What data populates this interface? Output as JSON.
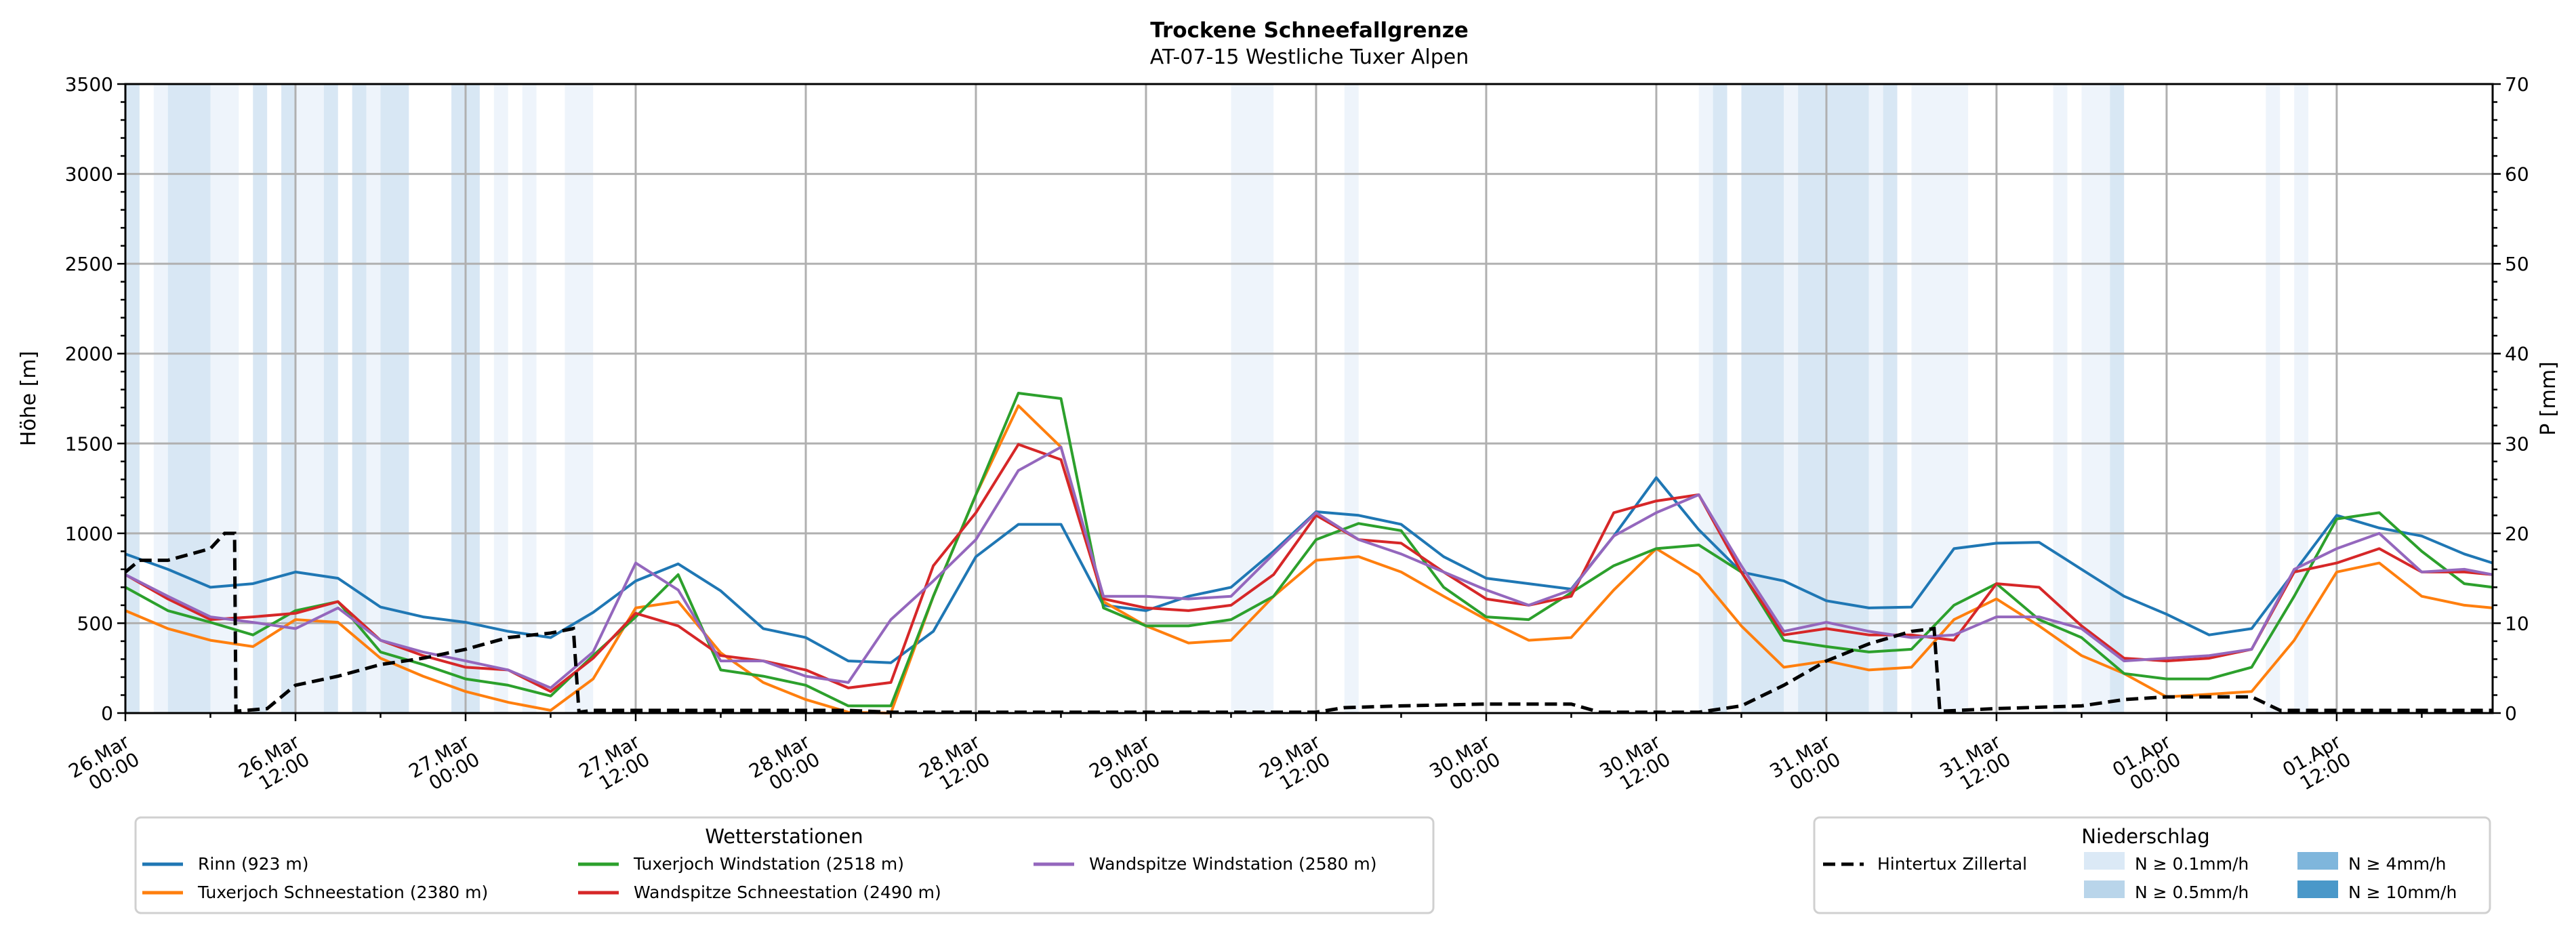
{
  "chart_data": {
    "type": "line",
    "title": "Trockene Schneefallgrenze",
    "subtitle": "AT-07-15 Westliche Tuxer Alpen",
    "ylabel": "Höhe [m]",
    "ylabel_right": "P [mm]",
    "ylim": [
      0,
      3500
    ],
    "ylim_right": [
      0,
      70
    ],
    "yticks": [
      "0",
      "500",
      "1000",
      "1500",
      "2000",
      "2500",
      "3000",
      "3500"
    ],
    "yticks_right": [
      "0",
      "10",
      "20",
      "30",
      "40",
      "50",
      "60",
      "70"
    ],
    "x_unit": "hours since 26.Mar 00:00",
    "xlim": [
      0,
      167
    ],
    "xticks": [
      {
        "h": 0,
        "date": "26.Mar",
        "time": "00:00"
      },
      {
        "h": 12,
        "date": "26.Mar",
        "time": "12:00"
      },
      {
        "h": 24,
        "date": "27.Mar",
        "time": "00:00"
      },
      {
        "h": 36,
        "date": "27.Mar",
        "time": "12:00"
      },
      {
        "h": 48,
        "date": "28.Mar",
        "time": "00:00"
      },
      {
        "h": 60,
        "date": "28.Mar",
        "time": "12:00"
      },
      {
        "h": 72,
        "date": "29.Mar",
        "time": "00:00"
      },
      {
        "h": 84,
        "date": "29.Mar",
        "time": "12:00"
      },
      {
        "h": 96,
        "date": "30.Mar",
        "time": "00:00"
      },
      {
        "h": 108,
        "date": "30.Mar",
        "time": "12:00"
      },
      {
        "h": 120,
        "date": "31.Mar",
        "time": "00:00"
      },
      {
        "h": 132,
        "date": "31.Mar",
        "time": "12:00"
      },
      {
        "h": 144,
        "date": "01.Apr",
        "time": "00:00"
      },
      {
        "h": 156,
        "date": "01.Apr",
        "time": "12:00"
      }
    ],
    "grid": true,
    "x": [
      0,
      3,
      6,
      9,
      12,
      15,
      18,
      21,
      24,
      27,
      30,
      33,
      36,
      39,
      42,
      45,
      48,
      51,
      54,
      57,
      60,
      63,
      66,
      69,
      72,
      75,
      78,
      81,
      84,
      87,
      90,
      93,
      96,
      99,
      102,
      105,
      108,
      111,
      114,
      117,
      120,
      123,
      126,
      129,
      132,
      135,
      138,
      141,
      144,
      147,
      150,
      153,
      156,
      159,
      162,
      165,
      167
    ],
    "series": [
      {
        "name": "Rinn (923 m)",
        "color": "#1f77b4",
        "values": [
          885,
          800,
          700,
          720,
          785,
          750,
          590,
          535,
          505,
          455,
          420,
          560,
          735,
          830,
          680,
          470,
          420,
          290,
          280,
          455,
          870,
          1050,
          1050,
          600,
          570,
          650,
          700,
          900,
          1120,
          1100,
          1050,
          870,
          750,
          720,
          690,
          985,
          1310,
          1020,
          785,
          735,
          625,
          585,
          590,
          915,
          945,
          950,
          800,
          650,
          550,
          435,
          470,
          785,
          1100,
          1030,
          985,
          885,
          835
        ]
      },
      {
        "name": "Tuxerjoch Schneestation (2380 m)",
        "color": "#ff7f0e",
        "values": [
          570,
          470,
          405,
          370,
          520,
          505,
          305,
          205,
          120,
          60,
          15,
          190,
          585,
          620,
          335,
          170,
          75,
          5,
          0,
          650,
          1215,
          1710,
          1480,
          620,
          485,
          390,
          405,
          650,
          850,
          870,
          785,
          650,
          520,
          405,
          420,
          685,
          915,
          770,
          485,
          255,
          290,
          240,
          255,
          520,
          635,
          485,
          320,
          220,
          90,
          105,
          120,
          405,
          785,
          835,
          650,
          600,
          585
        ]
      },
      {
        "name": "Tuxerjoch Windstation (2518 m)",
        "color": "#2ca02c",
        "values": [
          700,
          570,
          505,
          435,
          570,
          620,
          340,
          270,
          190,
          155,
          95,
          320,
          535,
          770,
          240,
          205,
          155,
          40,
          40,
          650,
          1215,
          1780,
          1750,
          585,
          485,
          485,
          520,
          650,
          965,
          1055,
          1015,
          700,
          535,
          520,
          670,
          820,
          915,
          935,
          785,
          405,
          370,
          340,
          355,
          600,
          720,
          520,
          420,
          220,
          190,
          190,
          255,
          650,
          1080,
          1115,
          900,
          720,
          700
        ]
      },
      {
        "name": "Wandspitze Schneestation (2490 m)",
        "color": "#d62728",
        "values": [
          770,
          635,
          520,
          535,
          555,
          620,
          405,
          320,
          255,
          240,
          120,
          305,
          555,
          485,
          320,
          290,
          240,
          140,
          170,
          820,
          1115,
          1495,
          1410,
          635,
          585,
          570,
          600,
          770,
          1100,
          965,
          945,
          785,
          635,
          600,
          650,
          1115,
          1180,
          1215,
          785,
          435,
          470,
          435,
          435,
          405,
          720,
          700,
          485,
          305,
          290,
          305,
          355,
          785,
          835,
          915,
          785,
          785,
          770
        ]
      },
      {
        "name": "Wandspitze Windstation (2580 m)",
        "color": "#9467bd",
        "values": [
          770,
          650,
          535,
          505,
          470,
          585,
          405,
          340,
          290,
          240,
          140,
          340,
          835,
          685,
          290,
          290,
          205,
          170,
          520,
          735,
          965,
          1350,
          1480,
          650,
          650,
          635,
          650,
          885,
          1115,
          965,
          885,
          785,
          685,
          600,
          685,
          985,
          1115,
          1215,
          820,
          455,
          505,
          455,
          420,
          435,
          535,
          535,
          470,
          290,
          305,
          320,
          355,
          800,
          915,
          1000,
          785,
          800,
          770
        ]
      }
    ],
    "precip_series": {
      "name": "Hintertux Zillertal",
      "color": "#000000",
      "unit": "mm",
      "points": [
        [
          0,
          15.7
        ],
        [
          1,
          17
        ],
        [
          3,
          17
        ],
        [
          6,
          18.3
        ],
        [
          7,
          20
        ],
        [
          7.7,
          20
        ],
        [
          7.8,
          0.2
        ],
        [
          10,
          0.5
        ],
        [
          12,
          3.1
        ],
        [
          15,
          4.1
        ],
        [
          18,
          5.4
        ],
        [
          21,
          6.1
        ],
        [
          24,
          7.1
        ],
        [
          27,
          8.4
        ],
        [
          30,
          8.9
        ],
        [
          31.6,
          9.4
        ],
        [
          32,
          0.1
        ],
        [
          33,
          0.3
        ],
        [
          51,
          0.3
        ],
        [
          54,
          0.1
        ],
        [
          84,
          0.1
        ],
        [
          86,
          0.6
        ],
        [
          90,
          0.8
        ],
        [
          96,
          1.0
        ],
        [
          102,
          1.0
        ],
        [
          104,
          0.1
        ],
        [
          111,
          0.1
        ],
        [
          114,
          0.8
        ],
        [
          117,
          3.1
        ],
        [
          120,
          5.8
        ],
        [
          123,
          7.7
        ],
        [
          126,
          9.1
        ],
        [
          127.6,
          9.4
        ],
        [
          128,
          0.2
        ],
        [
          132,
          0.5
        ],
        [
          138,
          0.8
        ],
        [
          141,
          1.5
        ],
        [
          144,
          1.8
        ],
        [
          150,
          1.8
        ],
        [
          152,
          0.3
        ],
        [
          167,
          0.3
        ]
      ]
    },
    "precip_bands": [
      {
        "from": 0,
        "to": 1,
        "level": "0.5"
      },
      {
        "from": 2,
        "to": 3,
        "level": "0.1"
      },
      {
        "from": 3,
        "to": 6,
        "level": "0.5"
      },
      {
        "from": 6,
        "to": 8,
        "level": "0.1"
      },
      {
        "from": 9,
        "to": 10,
        "level": "0.5"
      },
      {
        "from": 11,
        "to": 12,
        "level": "0.5"
      },
      {
        "from": 12,
        "to": 14,
        "level": "0.1"
      },
      {
        "from": 14,
        "to": 15,
        "level": "0.5"
      },
      {
        "from": 16,
        "to": 17,
        "level": "0.5"
      },
      {
        "from": 17,
        "to": 18,
        "level": "0.1"
      },
      {
        "from": 18,
        "to": 20,
        "level": "0.5"
      },
      {
        "from": 23,
        "to": 25,
        "level": "0.5"
      },
      {
        "from": 26,
        "to": 27,
        "level": "0.1"
      },
      {
        "from": 28,
        "to": 29,
        "level": "0.1"
      },
      {
        "from": 31,
        "to": 33,
        "level": "0.1"
      },
      {
        "from": 78,
        "to": 81,
        "level": "0.1"
      },
      {
        "from": 86,
        "to": 87,
        "level": "0.1"
      },
      {
        "from": 111,
        "to": 112,
        "level": "0.1"
      },
      {
        "from": 112,
        "to": 113,
        "level": "0.5"
      },
      {
        "from": 114,
        "to": 117,
        "level": "0.5"
      },
      {
        "from": 117,
        "to": 118,
        "level": "0.1"
      },
      {
        "from": 118,
        "to": 123,
        "level": "0.5"
      },
      {
        "from": 123,
        "to": 124,
        "level": "0.1"
      },
      {
        "from": 124,
        "to": 125,
        "level": "0.5"
      },
      {
        "from": 126,
        "to": 130,
        "level": "0.1"
      },
      {
        "from": 136,
        "to": 137,
        "level": "0.1"
      },
      {
        "from": 138,
        "to": 140,
        "level": "0.1"
      },
      {
        "from": 140,
        "to": 141,
        "level": "0.5"
      },
      {
        "from": 151,
        "to": 152,
        "level": "0.1"
      },
      {
        "from": 153,
        "to": 154,
        "level": "0.1"
      }
    ],
    "legend_stations": {
      "title": "Wetterstationen",
      "placement": "bottom-left"
    },
    "legend_precip": {
      "title": "Niederschlag",
      "placement": "bottom-right",
      "items": [
        {
          "label": "N ≥ 0.1mm/h",
          "color": "#dbe9f6"
        },
        {
          "label": "N ≥ 0.5mm/h",
          "color": "#b9d5ea"
        },
        {
          "label": "N ≥ 4mm/h",
          "color": "#7fb6dc"
        },
        {
          "label": "N ≥ 10mm/h",
          "color": "#4a98c9"
        }
      ]
    }
  }
}
